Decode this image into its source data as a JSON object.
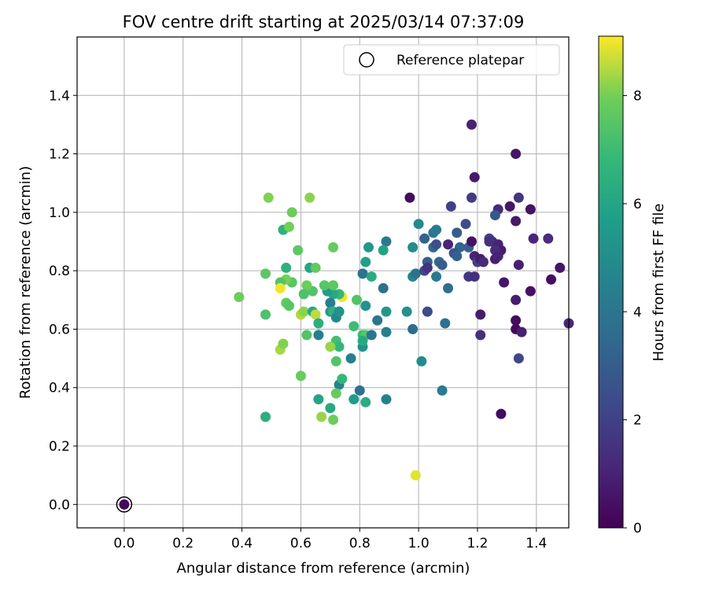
{
  "chart_data": {
    "type": "scatter",
    "title": "FOV centre drift starting at 2025/03/14 07:37:09",
    "xlabel": "Angular distance from reference (arcmin)",
    "ylabel": "Rotation from reference (arcmin)",
    "xlim": [
      -0.16,
      1.51
    ],
    "ylim": [
      -0.08,
      1.6
    ],
    "xticks": [
      "0.0",
      "0.2",
      "0.4",
      "0.6",
      "0.8",
      "1.0",
      "1.2",
      "1.4"
    ],
    "xtick_values": [
      0.0,
      0.2,
      0.4,
      0.6,
      0.8,
      1.0,
      1.2,
      1.4
    ],
    "yticks": [
      "0.0",
      "0.2",
      "0.4",
      "0.6",
      "0.8",
      "1.0",
      "1.2",
      "1.4"
    ],
    "ytick_values": [
      0.0,
      0.2,
      0.4,
      0.6,
      0.8,
      1.0,
      1.2,
      1.4
    ],
    "grid": true,
    "legend": {
      "position": "top-right",
      "entries": [
        "Reference platepar"
      ]
    },
    "colorbar": {
      "label": "Hours from first FF file",
      "min": 0,
      "max": 9.1,
      "ticks": [
        "0",
        "2",
        "4",
        "6",
        "8"
      ],
      "tick_values": [
        0,
        2,
        4,
        6,
        8
      ],
      "colormap": "viridis"
    },
    "reference_point": {
      "x": 0.0,
      "y": 0.0,
      "label": "Reference platepar"
    },
    "points": [
      [
        1.18,
        1.3,
        1.0
      ],
      [
        1.33,
        1.2,
        0.6
      ],
      [
        1.19,
        1.12,
        0.7
      ],
      [
        0.97,
        1.05,
        0.3
      ],
      [
        1.18,
        1.05,
        1.8
      ],
      [
        1.34,
        1.05,
        1.6
      ],
      [
        1.11,
        1.02,
        2.0
      ],
      [
        1.27,
        1.01,
        1.2
      ],
      [
        1.31,
        1.02,
        0.6
      ],
      [
        1.38,
        1.01,
        0.5
      ],
      [
        1.26,
        0.99,
        2.8
      ],
      [
        1.0,
        0.96,
        4.8
      ],
      [
        1.16,
        0.96,
        2.4
      ],
      [
        1.33,
        0.97,
        0.7
      ],
      [
        1.13,
        0.93,
        3.0
      ],
      [
        1.02,
        0.91,
        3.2
      ],
      [
        1.05,
        0.93,
        4.0
      ],
      [
        1.06,
        0.94,
        4.3
      ],
      [
        1.24,
        0.91,
        2.0
      ],
      [
        1.25,
        0.9,
        1.5
      ],
      [
        1.39,
        0.91,
        1.1
      ],
      [
        1.44,
        0.91,
        1.3
      ],
      [
        1.05,
        0.88,
        3.4
      ],
      [
        1.06,
        0.89,
        2.6
      ],
      [
        1.1,
        0.89,
        1.1
      ],
      [
        1.14,
        0.88,
        3.3
      ],
      [
        1.17,
        0.88,
        3.1
      ],
      [
        1.18,
        0.9,
        0.5
      ],
      [
        1.24,
        0.9,
        1.4
      ],
      [
        1.27,
        0.89,
        1.0
      ],
      [
        1.28,
        0.87,
        0.8
      ],
      [
        1.26,
        0.87,
        1.3
      ],
      [
        1.12,
        0.86,
        2.7
      ],
      [
        1.13,
        0.85,
        3.2
      ],
      [
        1.19,
        0.85,
        1.0
      ],
      [
        1.2,
        0.83,
        1.9
      ],
      [
        1.21,
        0.84,
        0.8
      ],
      [
        1.22,
        0.83,
        1.2
      ],
      [
        1.26,
        0.84,
        0.9
      ],
      [
        1.27,
        0.85,
        1.0
      ],
      [
        1.03,
        0.83,
        3.1
      ],
      [
        1.07,
        0.83,
        3.5
      ],
      [
        1.08,
        0.82,
        3.0
      ],
      [
        1.34,
        0.82,
        0.9
      ],
      [
        0.89,
        0.9,
        4.1
      ],
      [
        0.98,
        0.88,
        5.0
      ],
      [
        0.83,
        0.88,
        5.5
      ],
      [
        0.88,
        0.87,
        5.9
      ],
      [
        0.82,
        0.83,
        5.8
      ],
      [
        0.81,
        0.79,
        3.9
      ],
      [
        0.84,
        0.78,
        6.3
      ],
      [
        0.98,
        0.78,
        4.7
      ],
      [
        0.99,
        0.79,
        3.8
      ],
      [
        1.02,
        0.8,
        2.2
      ],
      [
        1.03,
        0.81,
        1.5
      ],
      [
        1.06,
        0.78,
        4.2
      ],
      [
        1.17,
        0.78,
        1.7
      ],
      [
        1.19,
        0.78,
        1.4
      ],
      [
        1.29,
        0.76,
        0.6
      ],
      [
        1.45,
        0.77,
        0.4
      ],
      [
        1.48,
        0.81,
        0.6
      ],
      [
        1.38,
        0.73,
        0.5
      ],
      [
        1.1,
        0.74,
        3.7
      ],
      [
        0.88,
        0.74,
        3.8
      ],
      [
        1.33,
        0.7,
        0.8
      ],
      [
        0.82,
        0.68,
        5.3
      ],
      [
        0.79,
        0.7,
        7.4
      ],
      [
        0.74,
        0.71,
        9.0
      ],
      [
        0.73,
        0.72,
        6.8
      ],
      [
        0.71,
        0.72,
        6.2
      ],
      [
        0.69,
        0.73,
        5.6
      ],
      [
        0.7,
        0.69,
        4.4
      ],
      [
        0.7,
        0.66,
        5.5
      ],
      [
        0.71,
        0.66,
        6.6
      ],
      [
        0.73,
        0.66,
        4.2
      ],
      [
        0.68,
        0.75,
        7.5
      ],
      [
        0.71,
        0.75,
        7.6
      ],
      [
        0.64,
        0.73,
        7.4
      ],
      [
        0.62,
        0.75,
        7.9
      ],
      [
        0.61,
        0.72,
        7.3
      ],
      [
        0.57,
        0.76,
        7.5
      ],
      [
        0.55,
        0.77,
        8.0
      ],
      [
        0.53,
        0.76,
        7.4
      ],
      [
        0.53,
        0.74,
        9.0
      ],
      [
        0.48,
        0.79,
        7.6
      ],
      [
        0.55,
        0.81,
        6.5
      ],
      [
        0.59,
        0.87,
        7.6
      ],
      [
        0.63,
        0.81,
        6.0
      ],
      [
        0.65,
        0.81,
        7.7
      ],
      [
        0.71,
        0.88,
        7.8
      ],
      [
        0.54,
        0.94,
        6.5
      ],
      [
        0.56,
        0.95,
        8.0
      ],
      [
        0.57,
        1.0,
        7.9
      ],
      [
        0.49,
        1.05,
        8.1
      ],
      [
        0.63,
        1.05,
        8.2
      ],
      [
        0.39,
        0.71,
        7.9
      ],
      [
        0.48,
        0.65,
        7.3
      ],
      [
        0.55,
        0.69,
        7.7
      ],
      [
        0.56,
        0.68,
        7.5
      ],
      [
        0.6,
        0.65,
        8.5
      ],
      [
        0.61,
        0.66,
        8.2
      ],
      [
        0.64,
        0.66,
        6.1
      ],
      [
        0.65,
        0.65,
        8.6
      ],
      [
        0.66,
        0.62,
        6.4
      ],
      [
        0.72,
        0.64,
        4.8
      ],
      [
        0.73,
        0.66,
        5.2
      ],
      [
        0.86,
        0.63,
        4.0
      ],
      [
        0.96,
        0.66,
        5.2
      ],
      [
        0.89,
        0.66,
        5.4
      ],
      [
        0.78,
        0.61,
        7.0
      ],
      [
        0.81,
        0.58,
        6.9
      ],
      [
        0.82,
        0.58,
        7.5
      ],
      [
        0.84,
        0.58,
        4.0
      ],
      [
        0.89,
        0.59,
        4.4
      ],
      [
        0.98,
        0.6,
        3.6
      ],
      [
        1.03,
        0.66,
        2.4
      ],
      [
        1.09,
        0.62,
        3.8
      ],
      [
        1.21,
        0.65,
        0.8
      ],
      [
        1.33,
        0.63,
        0.3
      ],
      [
        1.33,
        0.6,
        0.2
      ],
      [
        1.35,
        0.59,
        0.9
      ],
      [
        1.21,
        0.58,
        1.4
      ],
      [
        0.66,
        0.58,
        4.4
      ],
      [
        0.62,
        0.58,
        7.4
      ],
      [
        0.72,
        0.56,
        7.1
      ],
      [
        0.73,
        0.54,
        6.8
      ],
      [
        0.7,
        0.54,
        8.3
      ],
      [
        0.81,
        0.54,
        5.2
      ],
      [
        0.81,
        0.56,
        6.2
      ],
      [
        0.77,
        0.5,
        4.4
      ],
      [
        0.72,
        0.49,
        7.4
      ],
      [
        0.53,
        0.53,
        8.4
      ],
      [
        0.54,
        0.55,
        8.1
      ],
      [
        1.01,
        0.49,
        5.0
      ],
      [
        1.34,
        0.5,
        2.2
      ],
      [
        0.73,
        0.41,
        4.6
      ],
      [
        0.6,
        0.44,
        7.8
      ],
      [
        0.74,
        0.43,
        6.8
      ],
      [
        0.72,
        0.38,
        7.8
      ],
      [
        0.8,
        0.39,
        3.8
      ],
      [
        1.08,
        0.39,
        4.3
      ],
      [
        0.66,
        0.36,
        6.0
      ],
      [
        0.78,
        0.36,
        5.6
      ],
      [
        0.82,
        0.35,
        6.3
      ],
      [
        0.89,
        0.36,
        4.5
      ],
      [
        0.7,
        0.33,
        6.2
      ],
      [
        0.48,
        0.3,
        6.4
      ],
      [
        0.67,
        0.3,
        8.3
      ],
      [
        0.71,
        0.29,
        7.9
      ],
      [
        1.28,
        0.31,
        0.3
      ],
      [
        0.99,
        0.1,
        8.9
      ],
      [
        1.51,
        0.62,
        1.1
      ],
      [
        0.0,
        0.0,
        0.2
      ]
    ]
  }
}
